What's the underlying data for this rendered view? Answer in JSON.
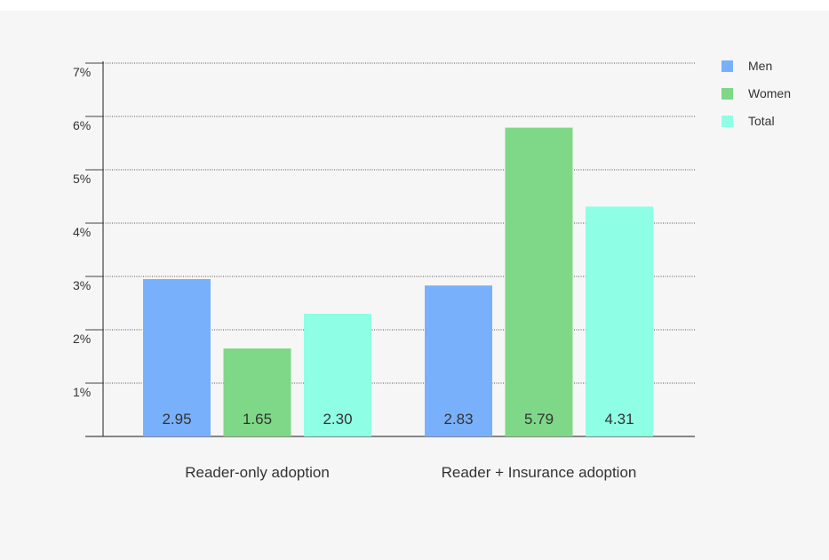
{
  "chart_data": {
    "type": "bar",
    "title": "",
    "xlabel": "",
    "ylabel": "",
    "ylim": [
      0,
      7
    ],
    "y_ticks": [
      1,
      2,
      3,
      4,
      5,
      6,
      7
    ],
    "y_tick_labels": [
      "1%",
      "2%",
      "3%",
      "4%",
      "5%",
      "6%",
      "7%"
    ],
    "grid": true,
    "legend_position": "top-right",
    "categories": [
      "Reader-only adoption",
      "Reader + Insurance adoption"
    ],
    "series": [
      {
        "name": "Men",
        "color": "#79b0fb",
        "values": [
          2.95,
          2.83
        ],
        "labels": [
          "2.95",
          "2.83"
        ]
      },
      {
        "name": "Women",
        "color": "#7ed887",
        "values": [
          1.65,
          5.79
        ],
        "labels": [
          "1.65",
          "5.79"
        ]
      },
      {
        "name": "Total",
        "color": "#8effe4",
        "values": [
          2.3,
          4.31
        ],
        "labels": [
          "2.30",
          "4.31"
        ]
      }
    ]
  }
}
